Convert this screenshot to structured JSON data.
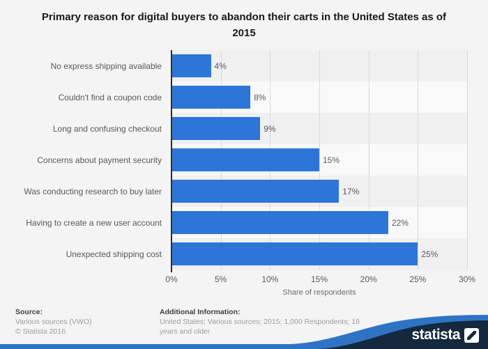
{
  "title": "Primary reason for digital buyers to abandon their carts in the United States as of 2015",
  "chart_data": {
    "type": "bar",
    "orientation": "horizontal",
    "title": "Primary reason for digital buyers to abandon their carts in the United States as of 2015",
    "categories": [
      "No express shipping available",
      "Couldn't find a coupon code",
      "Long and confusing checkout",
      "Concerns about payment security",
      "Was conducting research to buy later",
      "Having to create a new user account",
      "Unexpected shipping cost"
    ],
    "values": [
      4,
      8,
      9,
      15,
      17,
      22,
      25
    ],
    "value_labels": [
      "4%",
      "8%",
      "9%",
      "15%",
      "17%",
      "22%",
      "25%"
    ],
    "xlabel": "Share of respondents",
    "ylabel": "",
    "x_ticks": [
      "0%",
      "5%",
      "10%",
      "15%",
      "20%",
      "25%",
      "30%"
    ],
    "xlim": [
      0,
      30
    ],
    "grid": true,
    "legend": false,
    "bar_color": "#2d76d8"
  },
  "footer": {
    "source_heading": "Source:",
    "source_line1": "Various sources (VWO)",
    "source_line2": "© Statista 2016",
    "additional_heading": "Additional Information:",
    "additional_text": "United States; Various sources; 2015; 1,000 Respondents; 18 years and older"
  },
  "branding": {
    "logo_text": "statista",
    "navy": "#14293e",
    "blue": "#2f74c4"
  }
}
